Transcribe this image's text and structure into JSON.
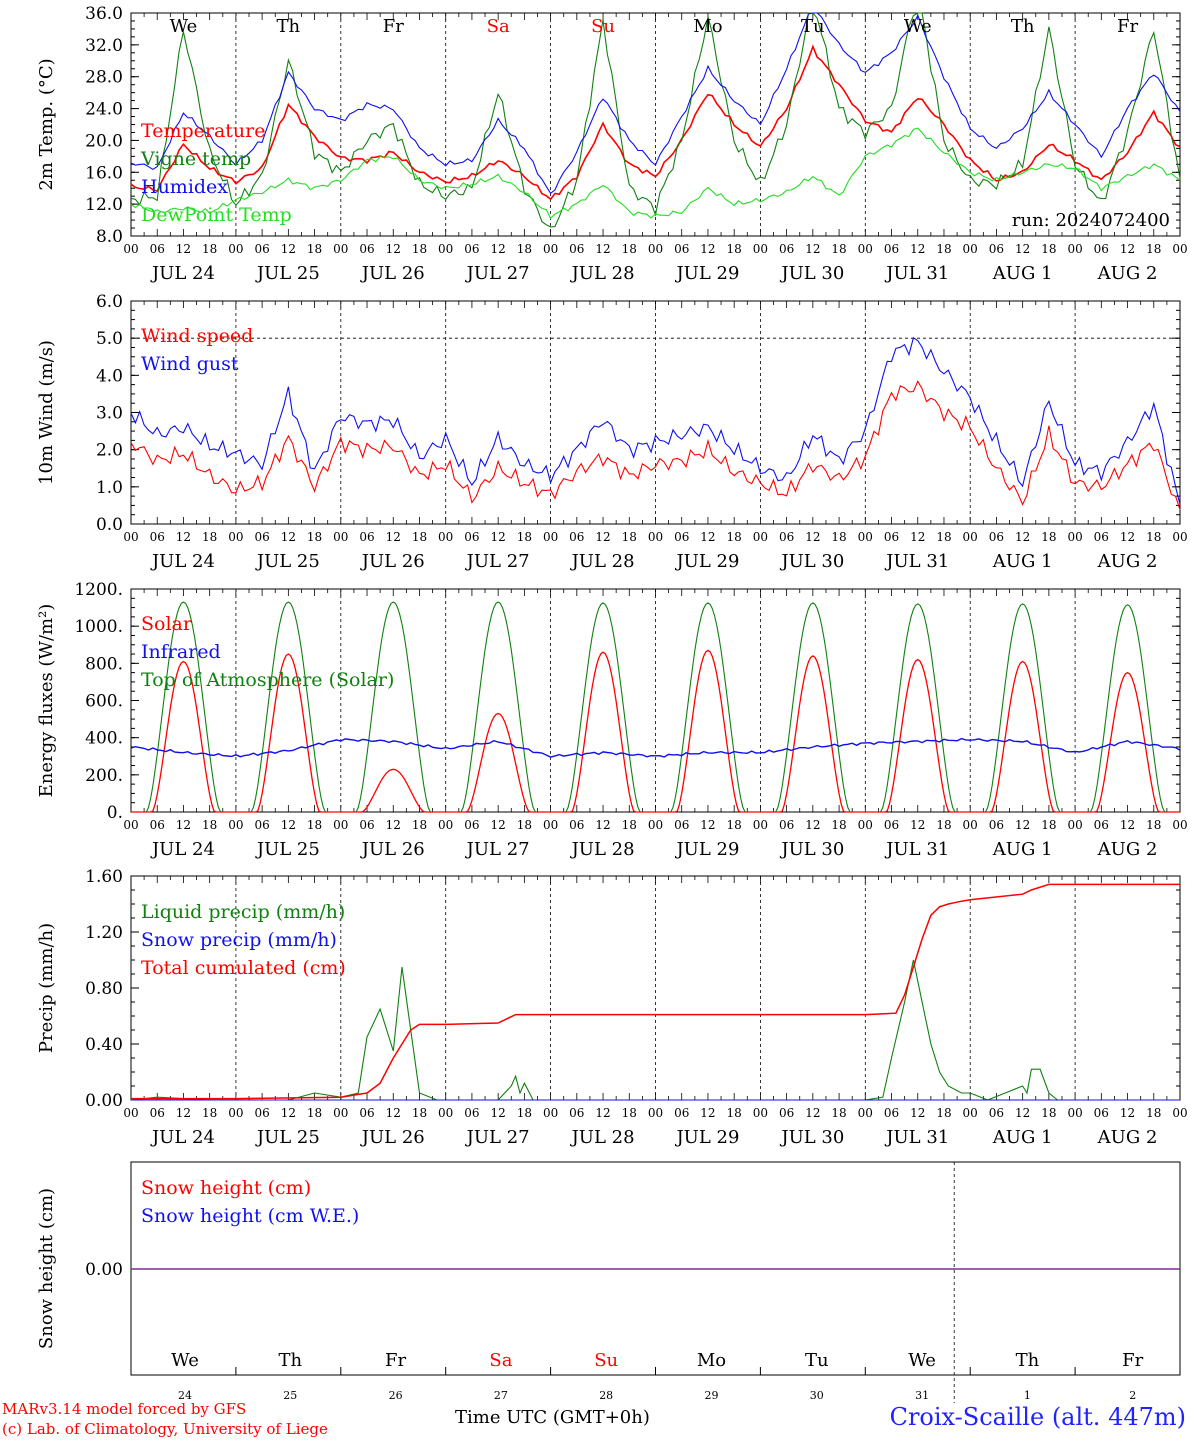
{
  "colors": {
    "red": "#ff0000",
    "green": "#108010",
    "blue": "#1010ee",
    "lightgreen": "#22dd22",
    "purple": "#7a2a9a",
    "axis": "#000000"
  },
  "days": [
    "JUL 24",
    "JUL 25",
    "JUL 26",
    "JUL 27",
    "JUL 28",
    "JUL 29",
    "JUL 30",
    "JUL 31",
    "AUG  1",
    "AUG  2"
  ],
  "weekdays": [
    "We",
    "Th",
    "Fr",
    "Sa",
    "Su",
    "Mo",
    "Tu",
    "We",
    "Th",
    "Fr"
  ],
  "weekday_colors": [
    "#000000",
    "#000000",
    "#000000",
    "#ff0000",
    "#ff0000",
    "#000000",
    "#000000",
    "#000000",
    "#000000",
    "#000000"
  ],
  "day_numbers": [
    "24",
    "25",
    "26",
    "27",
    "28",
    "29",
    "30",
    "31",
    "1",
    "2"
  ],
  "hour_labels": [
    "00",
    "06",
    "12",
    "18"
  ],
  "run_label": "run: 2024072400",
  "footer": {
    "credit_line1": "MARv3.14 model forced by GFS",
    "credit_line2": "(c) Lab. of Climatology, University of Liege",
    "time_axis_label": "Time UTC (GMT+0h)",
    "station": "Croix-Scaille (alt. 447m)"
  },
  "chart_data": [
    {
      "type": "line",
      "ylabel": "2m Temp. (°C)",
      "ylim": [
        8,
        36
      ],
      "yticks": [
        "8.0",
        "12.0",
        "16.0",
        "20.0",
        "24.0",
        "28.0",
        "32.0",
        "36.0"
      ],
      "x_unit": "hours since JUL 24 00 UTC",
      "series": [
        {
          "name": "Temperature",
          "color": "#ff0000",
          "x": [
            0,
            6,
            12,
            18,
            24,
            30,
            36,
            42,
            48,
            54,
            60,
            66,
            72,
            78,
            84,
            90,
            96,
            102,
            108,
            114,
            120,
            126,
            132,
            138,
            144,
            150,
            156,
            162,
            168,
            174,
            180,
            186,
            192,
            198,
            204,
            210,
            216,
            222,
            228,
            234,
            240
          ],
          "y": [
            14.2,
            13.8,
            19.5,
            16.5,
            14.8,
            16.5,
            24.5,
            20.5,
            17.8,
            17.5,
            18.5,
            16.0,
            14.8,
            15.5,
            17.5,
            15.5,
            12.6,
            15.5,
            22.0,
            17.0,
            15.5,
            20.0,
            26.0,
            22.0,
            19.2,
            24.0,
            31.5,
            27.0,
            22.5,
            21.0,
            25.5,
            22.0,
            17.5,
            15.0,
            16.0,
            19.5,
            17.5,
            15.0,
            18.5,
            23.5,
            19.0
          ]
        },
        {
          "name": "Vigne temp",
          "color": "#108010",
          "x": [
            0,
            6,
            12,
            18,
            24,
            30,
            36,
            42,
            48,
            54,
            60,
            66,
            72,
            78,
            84,
            90,
            96,
            102,
            108,
            114,
            120,
            126,
            132,
            138,
            144,
            150,
            156,
            162,
            168,
            174,
            180,
            186,
            192,
            198,
            204,
            210,
            216,
            222,
            228,
            234,
            240
          ],
          "y": [
            12.5,
            13.0,
            34.0,
            18.5,
            12.0,
            15.5,
            30.0,
            18.5,
            16.0,
            20.0,
            22.0,
            14.5,
            13.0,
            14.0,
            26.0,
            14.0,
            8.5,
            15.0,
            35.0,
            14.0,
            11.5,
            20.0,
            35.5,
            20.0,
            14.5,
            22.0,
            38.0,
            24.0,
            21.0,
            24.0,
            39.0,
            20.0,
            15.0,
            14.5,
            17.0,
            34.0,
            17.0,
            12.0,
            21.0,
            34.0,
            15.0
          ]
        },
        {
          "name": "Humidex",
          "color": "#1010ee",
          "x": [
            0,
            6,
            12,
            18,
            24,
            30,
            36,
            42,
            48,
            54,
            60,
            66,
            72,
            78,
            84,
            90,
            96,
            102,
            108,
            114,
            120,
            126,
            132,
            138,
            144,
            150,
            156,
            162,
            168,
            174,
            180,
            186,
            192,
            198,
            204,
            210,
            216,
            222,
            228,
            234,
            240
          ],
          "y": [
            17.2,
            16.5,
            23.5,
            20.5,
            17.0,
            20.0,
            28.5,
            24.0,
            22.5,
            24.5,
            24.0,
            19.0,
            17.0,
            17.5,
            22.5,
            19.0,
            13.2,
            18.5,
            25.5,
            20.0,
            17.0,
            23.0,
            29.0,
            25.0,
            22.0,
            29.0,
            37.0,
            32.0,
            28.5,
            31.0,
            35.5,
            28.0,
            21.5,
            19.0,
            21.5,
            26.0,
            22.0,
            18.0,
            24.0,
            28.5,
            23.5
          ]
        },
        {
          "name": "DewPoint Temp",
          "color": "#22dd22",
          "x": [
            0,
            6,
            12,
            18,
            24,
            30,
            36,
            42,
            48,
            54,
            60,
            66,
            72,
            78,
            84,
            90,
            96,
            102,
            108,
            114,
            120,
            126,
            132,
            138,
            144,
            150,
            156,
            162,
            168,
            174,
            180,
            186,
            192,
            198,
            204,
            210,
            216,
            222,
            228,
            234,
            240
          ],
          "y": [
            12.0,
            11.0,
            11.5,
            11.0,
            12.5,
            13.5,
            15.0,
            14.0,
            15.0,
            17.5,
            18.0,
            15.0,
            14.0,
            14.5,
            15.5,
            13.5,
            10.5,
            12.0,
            14.5,
            11.0,
            10.5,
            11.0,
            14.0,
            12.0,
            12.5,
            13.5,
            15.5,
            13.0,
            18.0,
            19.5,
            21.5,
            18.5,
            16.0,
            15.0,
            16.0,
            17.0,
            16.5,
            14.0,
            15.5,
            17.0,
            15.0
          ]
        }
      ]
    },
    {
      "type": "line",
      "ylabel": "10m Wind (m/s)",
      "ylim": [
        0,
        6
      ],
      "yticks": [
        "0.0",
        "1.0",
        "2.0",
        "3.0",
        "4.0",
        "5.0",
        "6.0"
      ],
      "reference_line": 5.0,
      "x_unit": "hours since JUL 24 00 UTC",
      "series": [
        {
          "name": "Wind speed",
          "color": "#ff0000",
          "x": [
            0,
            6,
            12,
            18,
            24,
            30,
            36,
            42,
            48,
            54,
            60,
            66,
            72,
            78,
            84,
            90,
            96,
            102,
            108,
            114,
            120,
            126,
            132,
            138,
            144,
            150,
            156,
            162,
            168,
            174,
            180,
            186,
            192,
            198,
            204,
            210,
            216,
            222,
            228,
            234,
            240
          ],
          "y": [
            2.2,
            1.7,
            1.9,
            1.3,
            0.9,
            1.1,
            2.3,
            1.0,
            2.2,
            2.0,
            2.1,
            1.3,
            1.6,
            0.7,
            1.5,
            1.1,
            0.8,
            1.4,
            1.8,
            1.3,
            1.6,
            1.7,
            2.0,
            1.4,
            1.1,
            0.8,
            1.6,
            1.2,
            1.8,
            3.5,
            3.7,
            3.0,
            2.6,
            1.5,
            0.6,
            2.4,
            1.1,
            1.0,
            1.6,
            2.2,
            0.3
          ]
        },
        {
          "name": "Wind gust",
          "color": "#1010ee",
          "x": [
            0,
            6,
            12,
            18,
            24,
            30,
            36,
            42,
            48,
            54,
            60,
            66,
            72,
            78,
            84,
            90,
            96,
            102,
            108,
            114,
            120,
            126,
            132,
            138,
            144,
            150,
            156,
            162,
            168,
            174,
            180,
            186,
            192,
            198,
            204,
            210,
            216,
            222,
            228,
            234,
            240
          ],
          "y": [
            3.0,
            2.4,
            2.6,
            2.1,
            1.9,
            1.6,
            3.5,
            1.4,
            2.9,
            2.7,
            2.8,
            1.8,
            2.3,
            1.1,
            2.3,
            1.6,
            1.3,
            2.0,
            2.8,
            2.0,
            2.2,
            2.4,
            2.6,
            2.0,
            1.5,
            1.2,
            2.4,
            1.7,
            2.5,
            4.6,
            4.9,
            4.1,
            3.4,
            2.2,
            1.1,
            3.3,
            1.6,
            1.4,
            2.2,
            3.2,
            0.5
          ]
        }
      ]
    },
    {
      "type": "line",
      "ylabel": "Energy fluxes (W/m²)",
      "ylim": [
        0,
        1200
      ],
      "yticks": [
        "0.",
        "200.",
        "400.",
        "600.",
        "800.",
        "1000.",
        "1200."
      ],
      "x_unit": "hours since JUL 24 00 UTC",
      "series": [
        {
          "name": "Solar",
          "color": "#ff0000",
          "daily_peak": [
            810,
            850,
            230,
            530,
            860,
            870,
            840,
            820,
            810,
            750
          ]
        },
        {
          "name": "Infrared",
          "color": "#1010ee",
          "x": [
            0,
            12,
            24,
            36,
            48,
            60,
            72,
            84,
            96,
            108,
            120,
            132,
            144,
            156,
            168,
            180,
            192,
            204,
            216,
            228,
            240
          ],
          "y": [
            350,
            320,
            300,
            330,
            390,
            380,
            340,
            380,
            300,
            320,
            300,
            320,
            320,
            350,
            370,
            380,
            390,
            380,
            320,
            380,
            340
          ]
        },
        {
          "name": "Top of Atmosphere (Solar)",
          "color": "#108010",
          "daily_peak": [
            1130,
            1130,
            1130,
            1130,
            1125,
            1125,
            1125,
            1120,
            1120,
            1115
          ]
        }
      ]
    },
    {
      "type": "line",
      "ylabel": "Precip (mm/h)",
      "ylim": [
        0,
        1.6
      ],
      "yticks": [
        "0.00",
        "0.40",
        "0.80",
        "1.20",
        "1.60"
      ],
      "x_unit": "hours since JUL 24 00 UTC",
      "series": [
        {
          "name": "Liquid precip (mm/h)",
          "color": "#108010",
          "x": [
            0,
            6,
            12,
            18,
            36,
            42,
            48,
            52,
            54,
            57,
            60,
            62,
            64,
            66,
            70,
            72,
            84,
            87,
            88,
            89,
            90,
            92,
            96,
            168,
            172,
            174,
            177,
            179,
            181,
            183,
            185,
            187,
            190,
            192,
            196,
            200,
            204,
            205,
            206,
            208,
            210,
            212,
            216,
            240
          ],
          "y": [
            0.0,
            0.02,
            0.01,
            0.0,
            0.0,
            0.05,
            0.02,
            0.05,
            0.45,
            0.65,
            0.35,
            0.95,
            0.5,
            0.05,
            0.0,
            0.0,
            0.0,
            0.1,
            0.17,
            0.05,
            0.12,
            0.0,
            0.0,
            0.0,
            0.02,
            0.3,
            0.7,
            1.0,
            0.7,
            0.4,
            0.2,
            0.1,
            0.05,
            0.05,
            0.0,
            0.05,
            0.1,
            0.05,
            0.22,
            0.22,
            0.05,
            0.0,
            0.0,
            0.0
          ]
        },
        {
          "name": "Snow precip (mm/h)",
          "color": "#1010ee",
          "x": [
            0,
            240
          ],
          "y": [
            0.0,
            0.0
          ]
        },
        {
          "name": "Total cumulated (cm)",
          "color": "#ff0000",
          "x": [
            0,
            24,
            48,
            54,
            57,
            60,
            62,
            64,
            66,
            72,
            84,
            88,
            96,
            120,
            144,
            168,
            175,
            177,
            179,
            181,
            183,
            185,
            187,
            190,
            192,
            204,
            206,
            210,
            216,
            240
          ],
          "y": [
            0.01,
            0.01,
            0.02,
            0.05,
            0.12,
            0.3,
            0.4,
            0.5,
            0.54,
            0.54,
            0.55,
            0.61,
            0.61,
            0.61,
            0.61,
            0.61,
            0.62,
            0.75,
            0.95,
            1.15,
            1.32,
            1.38,
            1.4,
            1.42,
            1.43,
            1.47,
            1.5,
            1.54,
            1.54,
            1.54
          ]
        }
      ]
    },
    {
      "type": "line",
      "ylabel": "Snow height (cm)",
      "yticks": [
        "0.00"
      ],
      "x_unit": "hours since JUL 24 00 UTC",
      "series": [
        {
          "name": "Snow height (cm)",
          "color": "#ff0000",
          "x": [
            0,
            240
          ],
          "y": [
            0.0,
            0.0
          ]
        },
        {
          "name": "Snow height (cm W.E.)",
          "color": "#1010ee",
          "x": [
            0,
            240
          ],
          "y": [
            0.0,
            0.0
          ]
        }
      ]
    }
  ]
}
